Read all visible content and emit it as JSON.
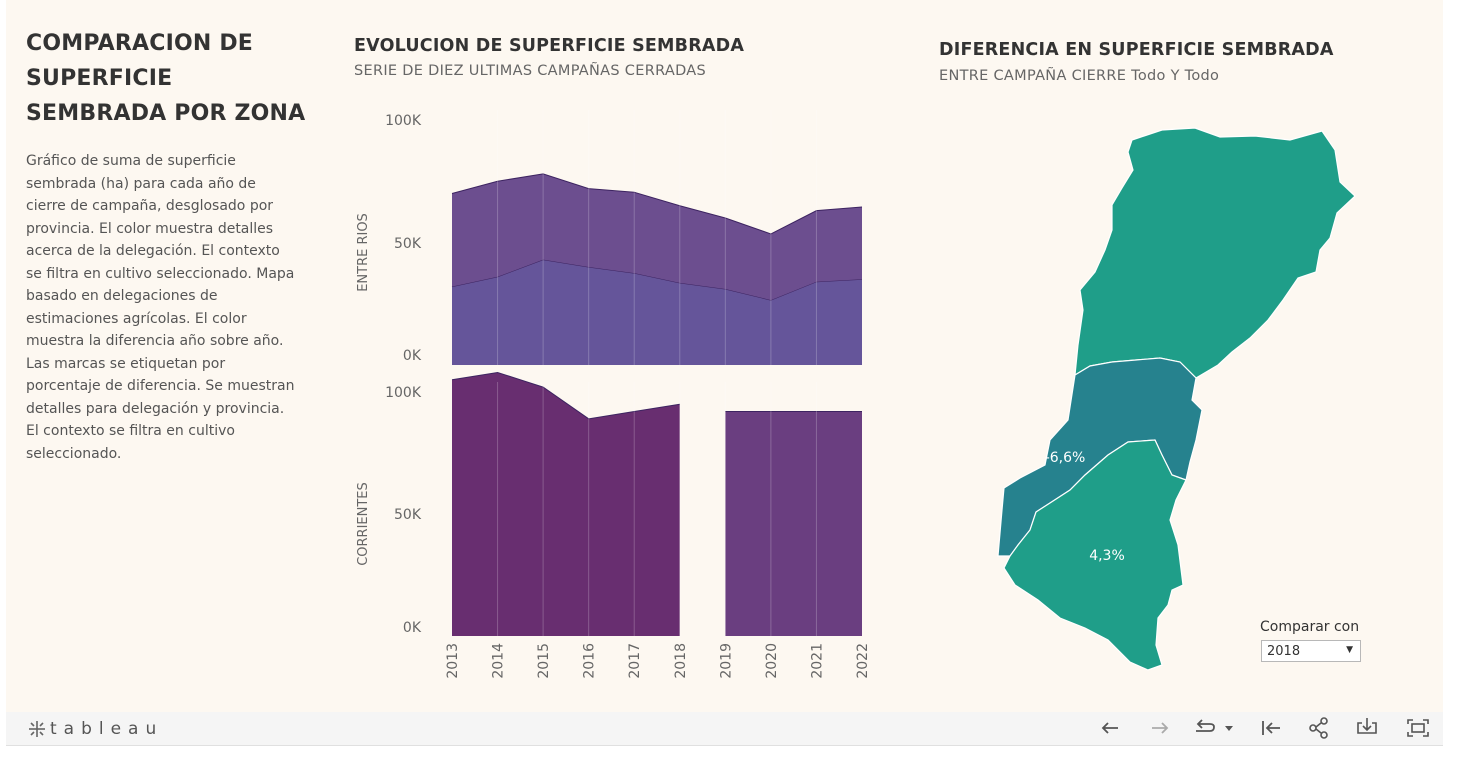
{
  "dashboard": {
    "title": "COMPARACION DE SUPERFICIE SEMBRADA POR ZONA",
    "description": "Gráfico de suma de superficie sembrada (ha) para cada año de cierre de campaña, desglosado por provincia. El color muestra detalles acerca de la delegación. El contexto se filtra en cultivo seleccionado. Mapa basado en delegaciones de estimaciones agrícolas. El color muestra la diferencia año sobre año. Las marcas se etiquetan por porcentaje de diferencia. Se muestran detalles para delegación y provincia. El contexto se filtra en cultivo seleccionado."
  },
  "area_chart": {
    "title": "EVOLUCION DE SUPERFICIE SEMBRADA",
    "subtitle": "SERIE DE DIEZ ULTIMAS CAMPAÑAS CERRADAS"
  },
  "map": {
    "title": "DIFERENCIA EN SUPERFICIE SEMBRADA",
    "subtitle": "ENTRE CAMPAÑA CIERRE Todo Y Todo",
    "labels": [
      "-6,6%",
      "4,3%"
    ],
    "colors": {
      "north": "#1f9e89",
      "middle": "#26828e",
      "south": "#1f9e89",
      "border": "#ffffff"
    }
  },
  "filter": {
    "label": "Comparar con",
    "selected": "2018"
  },
  "toolbar": {
    "logo": "tableau",
    "icons": [
      "back-icon",
      "forward-icon",
      "redo-icon",
      "dropdown-icon",
      "revert-icon",
      "share-icon",
      "download-icon",
      "fullscreen-icon"
    ]
  },
  "chart_data": [
    {
      "type": "area",
      "panel": "ENTRE RIOS",
      "x": [
        2013,
        2014,
        2015,
        2016,
        2017,
        2018,
        2019,
        2020,
        2021,
        2022
      ],
      "ylim": [
        0,
        100000
      ],
      "yticks": [
        "0K",
        "50K",
        "100K"
      ],
      "stacked": true,
      "series": [
        {
          "values": [
            32000,
            36000,
            43000,
            40000,
            37500,
            33500,
            31000,
            26500,
            34000,
            35000
          ],
          "color": "#65559a"
        },
        {
          "values": [
            38000,
            39000,
            35000,
            32000,
            33000,
            31500,
            29000,
            27000,
            29000,
            29500
          ],
          "color": "#6c4e8f"
        }
      ]
    },
    {
      "type": "area",
      "panel": "CORRIENTES",
      "x": [
        2013,
        2014,
        2015,
        2016,
        2017,
        2018,
        2019,
        2020,
        2021,
        2022
      ],
      "ylim": [
        0,
        100000
      ],
      "yticks": [
        "0K",
        "50K",
        "100K"
      ],
      "series": [
        {
          "values": [
            105000,
            108000,
            102000,
            89000,
            92000,
            95000,
            null,
            null,
            null,
            null
          ],
          "color": "#682e70"
        },
        {
          "values": [
            null,
            null,
            null,
            null,
            null,
            null,
            92000,
            92000,
            92000,
            92000
          ],
          "color": "#6a3e80"
        }
      ]
    }
  ]
}
